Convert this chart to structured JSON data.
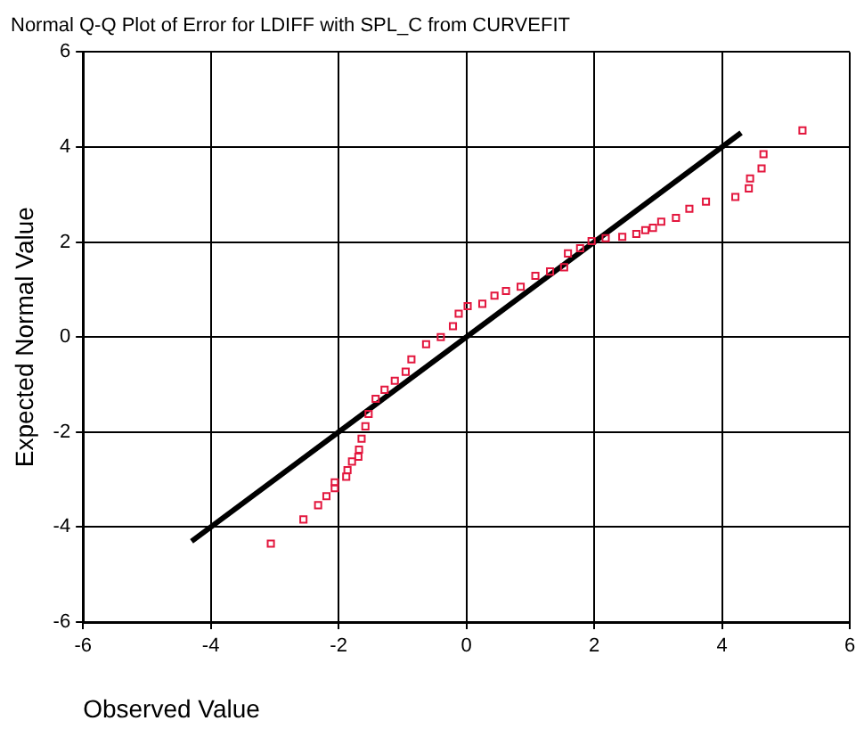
{
  "chart_data": {
    "type": "scatter",
    "title": "Normal Q-Q Plot of Error for LDIFF with SPL_C from CURVEFIT",
    "xlabel": "Observed Value",
    "ylabel": "Expected Normal Value",
    "xlim": [
      -6,
      6
    ],
    "ylim": [
      -6,
      6
    ],
    "xticks": [
      -6,
      -4,
      -2,
      0,
      2,
      4,
      6
    ],
    "yticks": [
      -6,
      -4,
      -2,
      0,
      2,
      4,
      6
    ],
    "grid": true,
    "legend": false,
    "series": [
      {
        "marker": "square",
        "color": "#e3173e",
        "x": [
          -3.06,
          -2.55,
          -2.32,
          -2.19,
          -2.06,
          -2.06,
          -1.88,
          -1.86,
          -1.79,
          -1.69,
          -1.68,
          -1.64,
          -1.58,
          -1.53,
          -1.42,
          -1.28,
          -1.12,
          -0.95,
          -0.86,
          -0.63,
          -0.4,
          -0.21,
          -0.12,
          0.02,
          0.25,
          0.44,
          0.62,
          0.85,
          1.08,
          1.31,
          1.53,
          1.59,
          1.78,
          1.96,
          2.18,
          2.44,
          2.66,
          2.8,
          2.92,
          3.05,
          3.28,
          3.49,
          3.75,
          4.21,
          4.42,
          4.44,
          4.62,
          4.65,
          5.26
        ],
        "values": [
          -4.35,
          -3.84,
          -3.54,
          -3.35,
          -3.18,
          -3.06,
          -2.94,
          -2.8,
          -2.62,
          -2.52,
          -2.37,
          -2.14,
          -1.88,
          -1.62,
          -1.3,
          -1.11,
          -0.92,
          -0.73,
          -0.47,
          -0.15,
          0,
          0.23,
          0.49,
          0.65,
          0.7,
          0.87,
          0.97,
          1.06,
          1.29,
          1.38,
          1.47,
          1.76,
          1.87,
          2.02,
          2.08,
          2.11,
          2.17,
          2.25,
          2.3,
          2.43,
          2.51,
          2.7,
          2.85,
          2.95,
          3.13,
          3.34,
          3.55,
          3.85,
          4.35
        ]
      },
      {
        "type": "line",
        "marker": "none",
        "color": "#000000",
        "x": [
          -4.3,
          4.3
        ],
        "values": [
          -4.3,
          4.3
        ]
      }
    ]
  }
}
